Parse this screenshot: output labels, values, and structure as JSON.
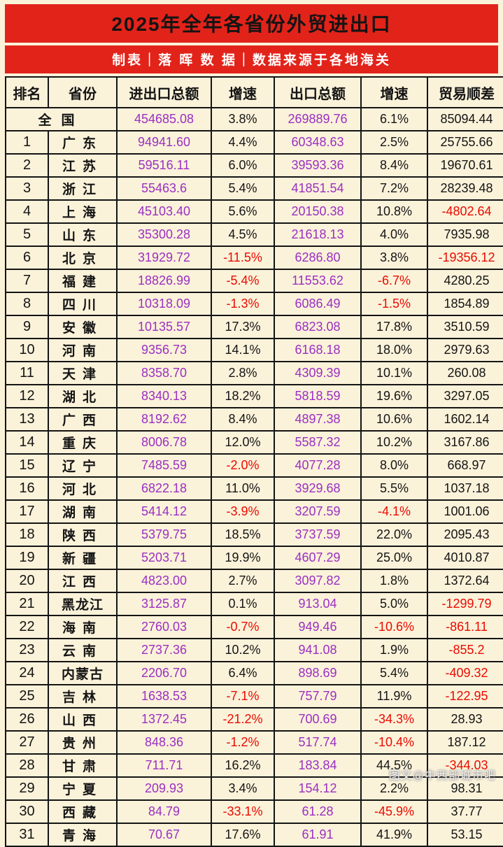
{
  "title": "2025年全年各省份外贸进出口",
  "subtitle": "制表｜落 晖 数 据｜数据来源于各地海关",
  "watermark": "图文@中西部城市吧",
  "colors": {
    "banner_red": "#e2231a",
    "background_cream": "#fbf2da",
    "amount_purple": "#9b2fc2",
    "negative_red": "#ea0b00",
    "text_black": "#141414"
  },
  "chart_data": {
    "type": "table",
    "title": "2025年全年各省份外贸进出口",
    "columns": [
      "排名",
      "省份",
      "进出口总额",
      "增速",
      "出口总额",
      "增速",
      "贸易顺差"
    ],
    "rows": [
      [
        null,
        "全国",
        "454685.08",
        "3.8%",
        "269889.76",
        "6.1%",
        "85094.44"
      ],
      [
        "1",
        "广东",
        "94941.60",
        "4.4%",
        "60348.63",
        "2.5%",
        "25755.66"
      ],
      [
        "2",
        "江苏",
        "59516.11",
        "6.0%",
        "39593.36",
        "8.4%",
        "19670.61"
      ],
      [
        "3",
        "浙江",
        "55463.6",
        "5.4%",
        "41851.54",
        "7.2%",
        "28239.48"
      ],
      [
        "4",
        "上海",
        "45103.40",
        "5.6%",
        "20150.38",
        "10.8%",
        "-4802.64"
      ],
      [
        "5",
        "山东",
        "35300.28",
        "4.5%",
        "21618.13",
        "4.0%",
        "7935.98"
      ],
      [
        "6",
        "北京",
        "31929.72",
        "-11.5%",
        "6286.80",
        "3.8%",
        "-19356.12"
      ],
      [
        "7",
        "福建",
        "18826.99",
        "-5.4%",
        "11553.62",
        "-6.7%",
        "4280.25"
      ],
      [
        "8",
        "四川",
        "10318.09",
        "-1.3%",
        "6086.49",
        "-1.5%",
        "1854.89"
      ],
      [
        "9",
        "安徽",
        "10135.57",
        "17.3%",
        "6823.08",
        "17.8%",
        "3510.59"
      ],
      [
        "10",
        "河南",
        "9356.73",
        "14.1%",
        "6168.18",
        "18.0%",
        "2979.63"
      ],
      [
        "11",
        "天津",
        "8358.70",
        "2.8%",
        "4309.39",
        "10.1%",
        "260.08"
      ],
      [
        "12",
        "湖北",
        "8340.13",
        "18.2%",
        "5818.59",
        "19.6%",
        "3297.05"
      ],
      [
        "13",
        "广西",
        "8192.62",
        "8.4%",
        "4897.38",
        "10.6%",
        "1602.14"
      ],
      [
        "14",
        "重庆",
        "8006.78",
        "12.0%",
        "5587.32",
        "10.2%",
        "3167.86"
      ],
      [
        "15",
        "辽宁",
        "7485.59",
        "-2.0%",
        "4077.28",
        "8.0%",
        "668.97"
      ],
      [
        "16",
        "河北",
        "6822.18",
        "11.0%",
        "3929.68",
        "5.5%",
        "1037.18"
      ],
      [
        "17",
        "湖南",
        "5414.12",
        "-3.9%",
        "3207.59",
        "-4.1%",
        "1001.06"
      ],
      [
        "18",
        "陕西",
        "5379.75",
        "18.5%",
        "3737.59",
        "22.0%",
        "2095.43"
      ],
      [
        "19",
        "新疆",
        "5203.71",
        "19.9%",
        "4607.29",
        "25.0%",
        "4010.87"
      ],
      [
        "20",
        "江西",
        "4823.00",
        "2.7%",
        "3097.82",
        "1.8%",
        "1372.64"
      ],
      [
        "21",
        "黑龙江",
        "3125.87",
        "0.1%",
        "913.04",
        "5.0%",
        "-1299.79"
      ],
      [
        "22",
        "海南",
        "2760.03",
        "-0.7%",
        "949.46",
        "-10.6%",
        "-861.11"
      ],
      [
        "23",
        "云南",
        "2737.36",
        "10.2%",
        "941.08",
        "1.9%",
        "-855.2"
      ],
      [
        "24",
        "内蒙古",
        "2206.70",
        "6.4%",
        "898.69",
        "5.4%",
        "-409.32"
      ],
      [
        "25",
        "吉林",
        "1638.53",
        "-7.1%",
        "757.79",
        "11.9%",
        "-122.95"
      ],
      [
        "26",
        "山西",
        "1372.45",
        "-21.2%",
        "700.69",
        "-34.3%",
        "28.93"
      ],
      [
        "27",
        "贵州",
        "848.36",
        "-1.2%",
        "517.74",
        "-10.4%",
        "187.12"
      ],
      [
        "28",
        "甘肃",
        "711.71",
        "16.2%",
        "183.84",
        "44.5%",
        "-344.03"
      ],
      [
        "29",
        "宁夏",
        "209.93",
        "3.4%",
        "154.12",
        "2.2%",
        "98.31"
      ],
      [
        "30",
        "西藏",
        "84.79",
        "-33.1%",
        "61.28",
        "-45.9%",
        "37.77"
      ],
      [
        "31",
        "青海",
        "70.67",
        "17.6%",
        "61.91",
        "41.9%",
        "53.15"
      ]
    ]
  }
}
